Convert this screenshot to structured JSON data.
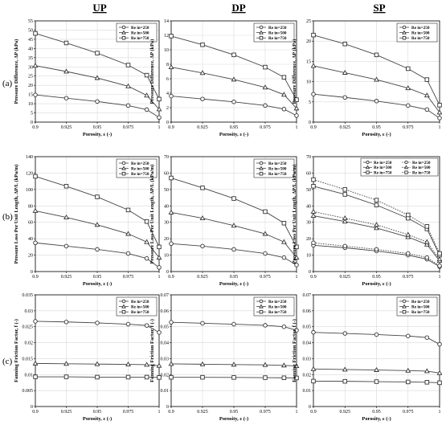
{
  "figure": {
    "column_titles": [
      "UP",
      "DP",
      "SP"
    ],
    "row_labels": [
      "(a)",
      "(b)",
      "(c)"
    ]
  },
  "chart_data": [
    {
      "type": "line",
      "panel": "a-UP",
      "xlabel": "Porosity, ε (-)",
      "ylabel": "Pressure Difference, ΔP (kPa)",
      "x": [
        0.9,
        0.925,
        0.95,
        0.975,
        0.99,
        1.0
      ],
      "xticks": [
        "0.9",
        "0.925",
        "0.95",
        "0.975",
        "1"
      ],
      "ylim": [
        0,
        55
      ],
      "yticks": [
        "0",
        "5",
        "10",
        "15",
        "20",
        "25",
        "30",
        "35",
        "40",
        "45",
        "50",
        "55"
      ],
      "legend_position": "top-right",
      "series": [
        {
          "name": "Re in=250",
          "marker": "circle",
          "style": "solid",
          "values": [
            14.8,
            13.0,
            11.2,
            9.0,
            6.8,
            2.5
          ]
        },
        {
          "name": "Re in=500",
          "marker": "triangle",
          "style": "solid",
          "values": [
            30.7,
            27.5,
            24.0,
            19.5,
            14.5,
            7.0
          ]
        },
        {
          "name": "Re in=750",
          "marker": "square",
          "style": "solid",
          "values": [
            48.2,
            43.0,
            37.5,
            31.0,
            25.5,
            12.5
          ]
        }
      ]
    },
    {
      "type": "line",
      "panel": "a-DP",
      "xlabel": "Porosity, ε (-)",
      "ylabel": "Pressure Difference, ΔP (kPa)",
      "x": [
        0.9,
        0.925,
        0.95,
        0.975,
        0.99,
        1.0
      ],
      "xticks": [
        "0.9",
        "0.925",
        "0.95",
        "0.975",
        "1"
      ],
      "ylim": [
        0,
        14
      ],
      "yticks": [
        "0",
        "2",
        "4",
        "6",
        "8",
        "10",
        "12",
        "14"
      ],
      "legend_position": "top-right",
      "series": [
        {
          "name": "Re in=250",
          "marker": "circle",
          "style": "solid",
          "values": [
            3.6,
            3.2,
            2.8,
            2.3,
            1.8,
            0.9
          ]
        },
        {
          "name": "Re in=500",
          "marker": "triangle",
          "style": "solid",
          "values": [
            7.6,
            6.8,
            5.9,
            4.8,
            3.8,
            1.9
          ]
        },
        {
          "name": "Re in=750",
          "marker": "square",
          "style": "solid",
          "values": [
            11.9,
            10.7,
            9.3,
            7.6,
            6.2,
            3.1
          ]
        }
      ]
    },
    {
      "type": "line",
      "panel": "a-SP",
      "xlabel": "Porosity, ε (-)",
      "ylabel": "Pressure Difference, ΔP (kPa)",
      "x": [
        0.9,
        0.925,
        0.95,
        0.975,
        0.99,
        1.0
      ],
      "xticks": [
        "0.9",
        "0.925",
        "0.95",
        "0.975",
        "1"
      ],
      "ylim": [
        0,
        25
      ],
      "yticks": [
        "0",
        "5",
        "10",
        "15",
        "20",
        "25"
      ],
      "legend_position": "top-right",
      "series": [
        {
          "name": "Re in=250",
          "marker": "circle",
          "style": "solid",
          "values": [
            6.9,
            6.1,
            5.2,
            4.1,
            3.1,
            1.0
          ]
        },
        {
          "name": "Re in=500",
          "marker": "triangle",
          "style": "solid",
          "values": [
            13.9,
            12.2,
            10.5,
            8.4,
            6.6,
            2.4
          ]
        },
        {
          "name": "Re in=750",
          "marker": "square",
          "style": "solid",
          "values": [
            21.5,
            19.3,
            16.6,
            13.2,
            10.5,
            4.2
          ]
        }
      ]
    },
    {
      "type": "line",
      "panel": "b-UP",
      "xlabel": "Porosity, ε (-)",
      "ylabel": "Pressure Loss Per Unit Length, ΔP/L (kPa/m)",
      "x": [
        0.9,
        0.925,
        0.95,
        0.975,
        0.99,
        1.0
      ],
      "xticks": [
        "0.9",
        "0.925",
        "0.95",
        "0.975",
        "1"
      ],
      "ylim": [
        0,
        140
      ],
      "yticks": [
        "0",
        "20",
        "40",
        "60",
        "80",
        "100",
        "120",
        "140"
      ],
      "legend_position": "top-right",
      "series": [
        {
          "name": "Re in=250",
          "marker": "circle",
          "style": "solid",
          "values": [
            35,
            31,
            27,
            22,
            16,
            5
          ]
        },
        {
          "name": "Re in=500",
          "marker": "triangle",
          "style": "solid",
          "values": [
            74,
            66,
            57,
            46,
            36,
            17
          ]
        },
        {
          "name": "Re in=750",
          "marker": "square",
          "style": "solid",
          "values": [
            116,
            104,
            91,
            75,
            61,
            30
          ]
        }
      ]
    },
    {
      "type": "line",
      "panel": "b-DP",
      "xlabel": "Porosity, ε (-)",
      "ylabel": "Pressure Loss Per Unit Length, ΔP/L (kPa/m)",
      "x": [
        0.9,
        0.925,
        0.95,
        0.975,
        0.99,
        1.0
      ],
      "xticks": [
        "0.9",
        "0.925",
        "0.95",
        "0.975",
        "1"
      ],
      "ylim": [
        0,
        70
      ],
      "yticks": [
        "0",
        "10",
        "20",
        "30",
        "40",
        "50",
        "60",
        "70"
      ],
      "legend_position": "top-right",
      "series": [
        {
          "name": "Re in=250",
          "marker": "circle",
          "style": "solid",
          "values": [
            17,
            15.5,
            13.5,
            11,
            8.5,
            4
          ]
        },
        {
          "name": "Re in=500",
          "marker": "triangle",
          "style": "solid",
          "values": [
            36,
            32.5,
            28,
            23,
            18,
            8.5
          ]
        },
        {
          "name": "Re in=750",
          "marker": "square",
          "style": "solid",
          "values": [
            57,
            51,
            44.5,
            36.5,
            29.5,
            15
          ]
        }
      ]
    },
    {
      "type": "line",
      "panel": "b-SP",
      "xlabel": "Porosity, ε (-)",
      "ylabel": "Pressure Loss Per Unit Length, ΔP/L (kPa/m)",
      "x": [
        0.9,
        0.925,
        0.95,
        0.975,
        0.99,
        1.0
      ],
      "xticks": [
        "0.9",
        "0.925",
        "0.95",
        "0.975",
        "1"
      ],
      "ylim": [
        0,
        70
      ],
      "yticks": [
        "0",
        "10",
        "20",
        "30",
        "40",
        "50",
        "60",
        "70"
      ],
      "legend_position": "top-right",
      "series": [
        {
          "name": "Re in=250",
          "marker": "circle",
          "style": "solid",
          "values": [
            16,
            14.5,
            12.5,
            10,
            7.5,
            3
          ]
        },
        {
          "name": "Re in=500",
          "marker": "triangle",
          "style": "solid",
          "values": [
            34,
            30.5,
            26.5,
            21,
            16.5,
            6.5
          ]
        },
        {
          "name": "Re in=750",
          "marker": "square",
          "style": "solid",
          "values": [
            52,
            47,
            40.5,
            32.5,
            26,
            10
          ]
        },
        {
          "name": "Re in=250",
          "marker": "circle",
          "style": "dotted",
          "values": [
            17.5,
            15.5,
            13.5,
            11,
            8.5,
            3.5
          ]
        },
        {
          "name": "Re in=500",
          "marker": "triangle",
          "style": "dotted",
          "values": [
            36.5,
            32.5,
            28.5,
            22.5,
            18,
            7.5
          ]
        },
        {
          "name": "Re in=750",
          "marker": "square",
          "style": "dotted",
          "values": [
            56,
            50,
            43.5,
            34.5,
            27.5,
            11
          ]
        }
      ]
    },
    {
      "type": "line",
      "panel": "c-UP",
      "xlabel": "Porosity, ε (-)",
      "ylabel": "Fanning Friction Factor, f (-)",
      "x": [
        0.9,
        0.925,
        0.95,
        0.975,
        0.99,
        1.0
      ],
      "xticks": [
        "0.9",
        "0.925",
        "0.95",
        "0.975",
        "1"
      ],
      "ylim": [
        0,
        0.035
      ],
      "yticks": [
        "0",
        "0.005",
        "0.01",
        "0.015",
        "0.02",
        "0.025",
        "0.03",
        "0.035"
      ],
      "legend_position": "top-right",
      "series": [
        {
          "name": "Re in=250",
          "marker": "circle",
          "style": "solid",
          "values": [
            0.0267,
            0.0265,
            0.0262,
            0.0258,
            0.0254,
            0.0232
          ]
        },
        {
          "name": "Re in=500",
          "marker": "triangle",
          "style": "solid",
          "values": [
            0.0135,
            0.0134,
            0.0133,
            0.0132,
            0.0131,
            0.0128
          ]
        },
        {
          "name": "Re in=750",
          "marker": "square",
          "style": "solid",
          "values": [
            0.0093,
            0.0093,
            0.0092,
            0.0092,
            0.0092,
            0.0091
          ]
        }
      ]
    },
    {
      "type": "line",
      "panel": "c-DP",
      "xlabel": "Porosity, ε (-)",
      "ylabel": "Fanning Friction Factor, f (-)",
      "x": [
        0.9,
        0.925,
        0.95,
        0.975,
        0.99,
        1.0
      ],
      "xticks": [
        "0.9",
        "0.925",
        "0.95",
        "0.975",
        "1"
      ],
      "ylim": [
        0,
        0.07
      ],
      "yticks": [
        "0",
        "0.01",
        "0.02",
        "0.03",
        "0.04",
        "0.05",
        "0.06",
        "0.07"
      ],
      "legend_position": "top-right",
      "series": [
        {
          "name": "Re in=250",
          "marker": "circle",
          "style": "solid",
          "values": [
            0.0528,
            0.0522,
            0.0516,
            0.0509,
            0.05,
            0.0478
          ]
        },
        {
          "name": "Re in=500",
          "marker": "triangle",
          "style": "solid",
          "values": [
            0.0267,
            0.0265,
            0.0263,
            0.0261,
            0.0258,
            0.0254
          ]
        },
        {
          "name": "Re in=750",
          "marker": "square",
          "style": "solid",
          "values": [
            0.0183,
            0.0183,
            0.0182,
            0.0181,
            0.018,
            0.0179
          ]
        }
      ]
    },
    {
      "type": "line",
      "panel": "c-SP",
      "xlabel": "Porosity, ε (-)",
      "ylabel": "Fanning Friction Factor, f (-)",
      "x": [
        0.9,
        0.925,
        0.95,
        0.975,
        0.99,
        1.0
      ],
      "xticks": [
        "0.9",
        "0.925",
        "0.95",
        "0.975",
        "1"
      ],
      "ylim": [
        0,
        0.07
      ],
      "yticks": [
        "0",
        "0.01",
        "0.02",
        "0.03",
        "0.04",
        "0.05",
        "0.06",
        "0.07"
      ],
      "legend_position": "top-right",
      "series": [
        {
          "name": "Re in=250",
          "marker": "circle",
          "style": "solid",
          "values": [
            0.0465,
            0.0458,
            0.0451,
            0.0442,
            0.0432,
            0.039
          ]
        },
        {
          "name": "Re in=500",
          "marker": "triangle",
          "style": "solid",
          "values": [
            0.0235,
            0.0232,
            0.0229,
            0.0225,
            0.0222,
            0.021
          ]
        },
        {
          "name": "Re in=750",
          "marker": "square",
          "style": "solid",
          "values": [
            0.0159,
            0.0158,
            0.0156,
            0.0154,
            0.0152,
            0.0149
          ]
        }
      ]
    }
  ]
}
